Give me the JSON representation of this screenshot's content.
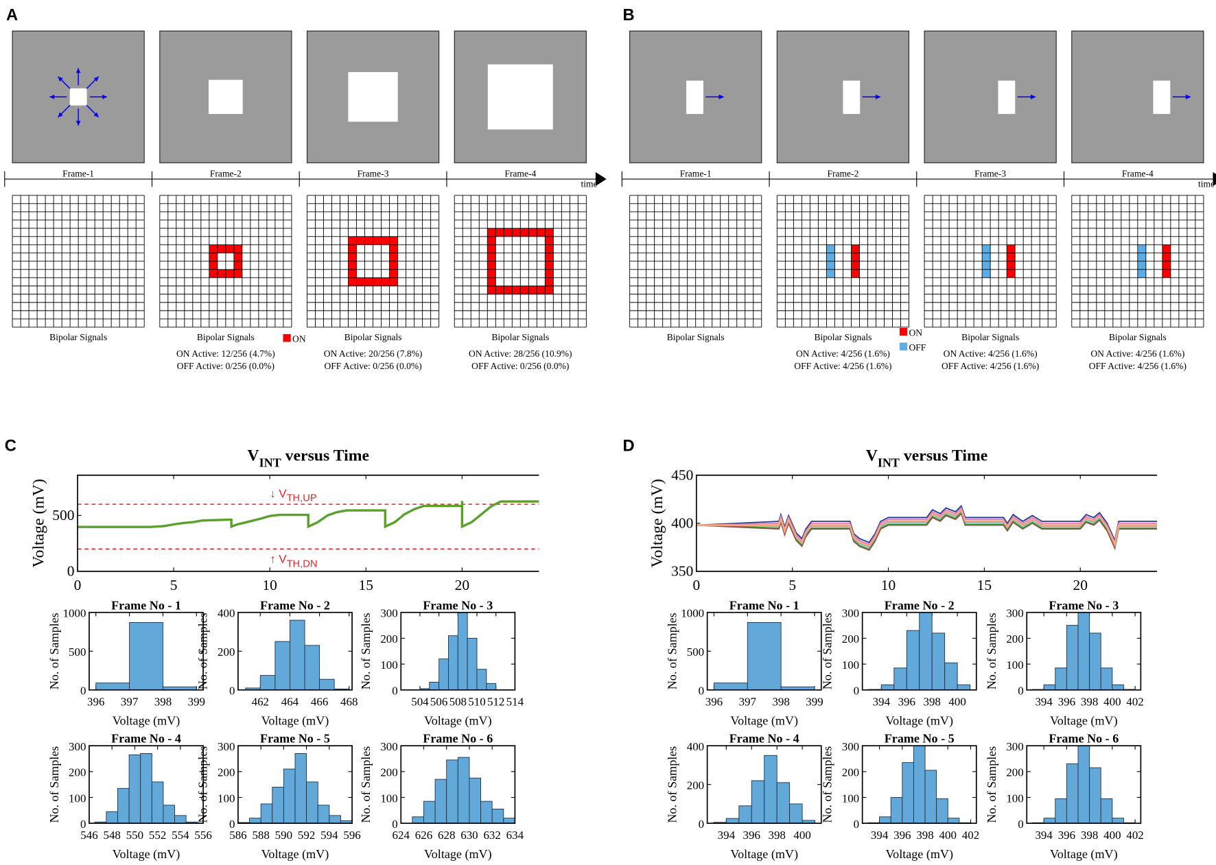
{
  "panel_labels": {
    "a": "A",
    "b": "B",
    "c": "C",
    "d": "D"
  },
  "panel_a": {
    "time_label": "time",
    "legend": [
      {
        "label": "ON",
        "color": "#ff0000"
      }
    ],
    "frames": [
      {
        "label": "Frame-1",
        "caption": "Bipolar Signals",
        "on_ring": null
      },
      {
        "label": "Frame-2",
        "caption": "Bipolar Signals",
        "on_text": "ON Active: 12/256 (4.7%)",
        "off_text": "OFF Active: 0/256 (0.0%)",
        "on_ring": [
          6,
          9
        ]
      },
      {
        "label": "Frame-3",
        "caption": "Bipolar Signals",
        "on_text": "ON Active: 20/256 (7.8%)",
        "off_text": "OFF Active: 0/256 (0.0%)",
        "on_ring": [
          5,
          10
        ]
      },
      {
        "label": "Frame-4",
        "caption": "Bipolar Signals",
        "on_text": "ON Active: 28/256 (10.9%)",
        "off_text": "OFF Active: 0/256 (0.0%)",
        "on_ring": [
          4,
          11
        ]
      }
    ]
  },
  "panel_b": {
    "time_label": "time",
    "legend": [
      {
        "label": "ON",
        "color": "#ff0000"
      },
      {
        "label": "OFF",
        "color": "#5aaee8"
      }
    ],
    "frames": [
      {
        "label": "Frame-1",
        "caption": "Bipolar Signals",
        "on_col": null,
        "off_col": null
      },
      {
        "label": "Frame-2",
        "caption": "Bipolar Signals",
        "on_text": "ON Active: 4/256 (1.6%)",
        "off_text": "OFF Active: 4/256 (1.6%)",
        "on_col": 9,
        "off_col": 6,
        "rows": [
          6,
          9
        ]
      },
      {
        "label": "Frame-3",
        "caption": "Bipolar Signals",
        "on_text": "ON Active: 4/256 (1.6%)",
        "off_text": "OFF Active: 4/256 (1.6%)",
        "on_col": 10,
        "off_col": 7,
        "rows": [
          6,
          9
        ]
      },
      {
        "label": "Frame-4",
        "caption": "Bipolar Signals",
        "on_text": "ON Active: 4/256 (1.6%)",
        "off_text": "OFF Active: 4/256 (1.6%)",
        "on_col": 11,
        "off_col": 8,
        "rows": [
          6,
          9
        ]
      }
    ]
  },
  "chart_data": [
    {
      "id": "c-line",
      "type": "line",
      "title": {
        "main": "V",
        "sub": "INT",
        "rest": " versus Time"
      },
      "xlabel": "",
      "ylabel": "Voltage  (mV)",
      "xlim": [
        0,
        24
      ],
      "ylim": [
        0,
        860
      ],
      "xticks": [
        0,
        5,
        10,
        15,
        20
      ],
      "yticks": [
        0,
        500
      ],
      "thresholds": [
        {
          "value": 600,
          "arrow": "↓",
          "label": "V",
          "sub": "TH,UP"
        },
        {
          "value": 200,
          "arrow": "↑",
          "label": "V",
          "sub": "TH,DN"
        }
      ],
      "series": [
        {
          "name": "V_INT",
          "color": "#5aa02c",
          "points": [
            [
              0,
              397
            ],
            [
              3.8,
              397
            ],
            [
              4.5,
              405
            ],
            [
              5,
              420
            ],
            [
              5.5,
              432
            ],
            [
              6,
              440
            ],
            [
              6.5,
              455
            ],
            [
              7.9,
              462
            ],
            [
              8,
              462
            ],
            [
              8,
              400
            ],
            [
              8.3,
              420
            ],
            [
              8.8,
              440
            ],
            [
              9.5,
              470
            ],
            [
              10,
              495
            ],
            [
              10.5,
              505
            ],
            [
              12,
              505
            ],
            [
              12,
              400
            ],
            [
              12.5,
              440
            ],
            [
              13,
              500
            ],
            [
              13.5,
              530
            ],
            [
              14,
              545
            ],
            [
              16,
              545
            ],
            [
              16,
              400
            ],
            [
              16.5,
              440
            ],
            [
              17,
              510
            ],
            [
              17.5,
              555
            ],
            [
              18,
              585
            ],
            [
              20,
              585
            ],
            [
              20,
              630
            ],
            [
              20,
              400
            ],
            [
              20.5,
              440
            ],
            [
              21,
              510
            ],
            [
              21.5,
              580
            ],
            [
              22,
              625
            ],
            [
              24,
              625
            ]
          ]
        }
      ]
    },
    {
      "id": "d-line",
      "type": "line",
      "title": {
        "main": "V",
        "sub": "INT",
        "rest": " versus Time"
      },
      "xlabel": "",
      "ylabel": "Voltage  (mV)",
      "xlim": [
        0,
        24
      ],
      "ylim": [
        350,
        450
      ],
      "xticks": [
        0,
        5,
        10,
        15,
        20
      ],
      "yticks": [
        350,
        400,
        450
      ],
      "base_points": [
        [
          0,
          398
        ],
        [
          4.3,
          398
        ],
        [
          4.4,
          405
        ],
        [
          4.6,
          392
        ],
        [
          4.8,
          404
        ],
        [
          5,
          395
        ],
        [
          5.2,
          386
        ],
        [
          5.5,
          380
        ],
        [
          5.7,
          390
        ],
        [
          6,
          398
        ],
        [
          8,
          398
        ],
        [
          8.2,
          385
        ],
        [
          8.5,
          380
        ],
        [
          9,
          376
        ],
        [
          9.3,
          385
        ],
        [
          9.6,
          398
        ],
        [
          10,
          402
        ],
        [
          12,
          402
        ],
        [
          12.3,
          410
        ],
        [
          12.7,
          406
        ],
        [
          13,
          412
        ],
        [
          13.5,
          408
        ],
        [
          13.8,
          414
        ],
        [
          14,
          402
        ],
        [
          16,
          402
        ],
        [
          16.2,
          396
        ],
        [
          16.5,
          405
        ],
        [
          17,
          398
        ],
        [
          17.5,
          404
        ],
        [
          18,
          398
        ],
        [
          20,
          398
        ],
        [
          20.3,
          405
        ],
        [
          20.7,
          402
        ],
        [
          21,
          407
        ],
        [
          21.4,
          396
        ],
        [
          21.8,
          378
        ],
        [
          22,
          398
        ],
        [
          24,
          398
        ]
      ],
      "series": [
        {
          "name": "s1",
          "color": "#1f3b8f",
          "offset": 4
        },
        {
          "name": "s2",
          "color": "#2ca02c",
          "offset": -3
        },
        {
          "name": "s3",
          "color": "#e377c2",
          "offset": 2
        },
        {
          "name": "s4",
          "color": "#17becf",
          "offset": -1
        },
        {
          "name": "s5",
          "color": "#8c564b",
          "offset": -4
        },
        {
          "name": "s6",
          "color": "#f4a582",
          "offset": 0
        }
      ]
    },
    {
      "id": "c-h1",
      "type": "bar",
      "title": "Frame No - 1",
      "xlabel": "Voltage (mV)",
      "ylabel": "No. of Samples",
      "xlim": [
        395.8,
        399.2
      ],
      "ylim": [
        0,
        1000
      ],
      "xticks": [
        396,
        397,
        398,
        399
      ],
      "yticks": [
        0,
        500,
        1000
      ],
      "bin_start": 396,
      "bin_width": 1,
      "counts": [
        90,
        870,
        40
      ]
    },
    {
      "id": "c-h2",
      "type": "bar",
      "title": "Frame No - 2",
      "xlabel": "Voltage (mV)",
      "ylabel": "No. of Samples",
      "xlim": [
        460.5,
        468.2
      ],
      "ylim": [
        0,
        400
      ],
      "xticks": [
        462,
        464,
        466,
        468
      ],
      "yticks": [
        0,
        200,
        400
      ],
      "bin_start": 461,
      "bin_width": 1,
      "counts": [
        10,
        75,
        250,
        360,
        230,
        55,
        5
      ]
    },
    {
      "id": "c-h3",
      "type": "bar",
      "title": "Frame No - 3",
      "xlabel": "Voltage (mV)",
      "ylabel": "No. of Samples",
      "xlim": [
        502,
        514
      ],
      "ylim": [
        0,
        300
      ],
      "xticks": [
        504,
        506,
        508,
        510,
        512,
        514
      ],
      "yticks": [
        0,
        100,
        200,
        300
      ],
      "bin_start": 504,
      "bin_width": 1,
      "counts": [
        5,
        30,
        120,
        210,
        310,
        200,
        80,
        25
      ]
    },
    {
      "id": "c-h4",
      "type": "bar",
      "title": "Frame No - 4",
      "xlabel": "Voltage (mV)",
      "ylabel": "No. of Samples",
      "xlim": [
        546,
        556
      ],
      "ylim": [
        0,
        300
      ],
      "xticks": [
        546,
        548,
        550,
        552,
        554,
        556
      ],
      "yticks": [
        0,
        100,
        200,
        300
      ],
      "bin_start": 546.5,
      "bin_width": 1,
      "counts": [
        5,
        45,
        135,
        265,
        270,
        160,
        70,
        30,
        5
      ]
    },
    {
      "id": "c-h5",
      "type": "bar",
      "title": "Frame No - 5",
      "xlabel": "Voltage (mV)",
      "ylabel": "No. of Samples",
      "xlim": [
        586,
        596
      ],
      "ylim": [
        0,
        300
      ],
      "xticks": [
        586,
        588,
        590,
        592,
        594,
        596
      ],
      "yticks": [
        0,
        100,
        200,
        300
      ],
      "bin_start": 586,
      "bin_width": 1,
      "counts": [
        3,
        20,
        75,
        140,
        210,
        270,
        160,
        70,
        30,
        10
      ]
    },
    {
      "id": "c-h6",
      "type": "bar",
      "title": "Frame No - 6",
      "xlabel": "Voltage (mV)",
      "ylabel": "No. of Samples",
      "xlim": [
        624,
        634
      ],
      "ylim": [
        0,
        300
      ],
      "xticks": [
        624,
        626,
        628,
        630,
        632,
        634
      ],
      "yticks": [
        0,
        100,
        200,
        300
      ],
      "bin_start": 625,
      "bin_width": 1,
      "counts": [
        25,
        85,
        170,
        245,
        255,
        175,
        85,
        55,
        20
      ]
    },
    {
      "id": "d-h1",
      "type": "bar",
      "title": "Frame No - 1",
      "xlabel": "Voltage (mV)",
      "ylabel": "No. of Samples",
      "xlim": [
        395.8,
        399.2
      ],
      "ylim": [
        0,
        1000
      ],
      "xticks": [
        396,
        397,
        398,
        399
      ],
      "yticks": [
        0,
        500,
        1000
      ],
      "bin_start": 396,
      "bin_width": 1,
      "counts": [
        90,
        870,
        40
      ]
    },
    {
      "id": "d-h2",
      "type": "bar",
      "title": "Frame No - 2",
      "xlabel": "Voltage (mV)",
      "ylabel": "No. of Samples",
      "xlim": [
        392.5,
        401.5
      ],
      "ylim": [
        0,
        300
      ],
      "xticks": [
        394,
        396,
        398,
        400
      ],
      "yticks": [
        0,
        100,
        200,
        300
      ],
      "bin_start": 393,
      "bin_width": 1,
      "counts": [
        2,
        20,
        85,
        230,
        310,
        220,
        105,
        20
      ]
    },
    {
      "id": "d-h3",
      "type": "bar",
      "title": "Frame No - 3",
      "xlabel": "Voltage (mV)",
      "ylabel": "No. of Samples",
      "xlim": [
        392.5,
        402.5
      ],
      "ylim": [
        0,
        300
      ],
      "xticks": [
        394,
        396,
        398,
        400,
        402
      ],
      "yticks": [
        0,
        100,
        200,
        300
      ],
      "bin_start": 393,
      "bin_width": 1,
      "counts": [
        2,
        20,
        85,
        250,
        310,
        220,
        85,
        20,
        2
      ]
    },
    {
      "id": "d-h4",
      "type": "bar",
      "title": "Frame No - 4",
      "xlabel": "Voltage (mV)",
      "ylabel": "No. of Samples",
      "xlim": [
        392.5,
        401.5
      ],
      "ylim": [
        0,
        400
      ],
      "xticks": [
        394,
        396,
        398,
        400
      ],
      "yticks": [
        0,
        200,
        400
      ],
      "bin_start": 393,
      "bin_width": 1,
      "counts": [
        5,
        25,
        90,
        220,
        350,
        210,
        100,
        15
      ]
    },
    {
      "id": "d-h5",
      "type": "bar",
      "title": "Frame No - 5",
      "xlabel": "Voltage (mV)",
      "ylabel": "No. of Samples",
      "xlim": [
        392.5,
        402.5
      ],
      "ylim": [
        0,
        300
      ],
      "xticks": [
        394,
        396,
        398,
        400,
        402
      ],
      "yticks": [
        0,
        100,
        200,
        300
      ],
      "bin_start": 393,
      "bin_width": 1,
      "counts": [
        2,
        25,
        100,
        235,
        310,
        205,
        95,
        20,
        2
      ]
    },
    {
      "id": "d-h6",
      "type": "bar",
      "title": "Frame No - 6",
      "xlabel": "Voltage (mV)",
      "ylabel": "No. of Samples",
      "xlim": [
        392.5,
        402.5
      ],
      "ylim": [
        0,
        300
      ],
      "xticks": [
        394,
        396,
        398,
        400,
        402
      ],
      "yticks": [
        0,
        100,
        200,
        300
      ],
      "bin_start": 393,
      "bin_width": 1,
      "counts": [
        2,
        20,
        95,
        230,
        310,
        215,
        95,
        20,
        2
      ]
    }
  ]
}
